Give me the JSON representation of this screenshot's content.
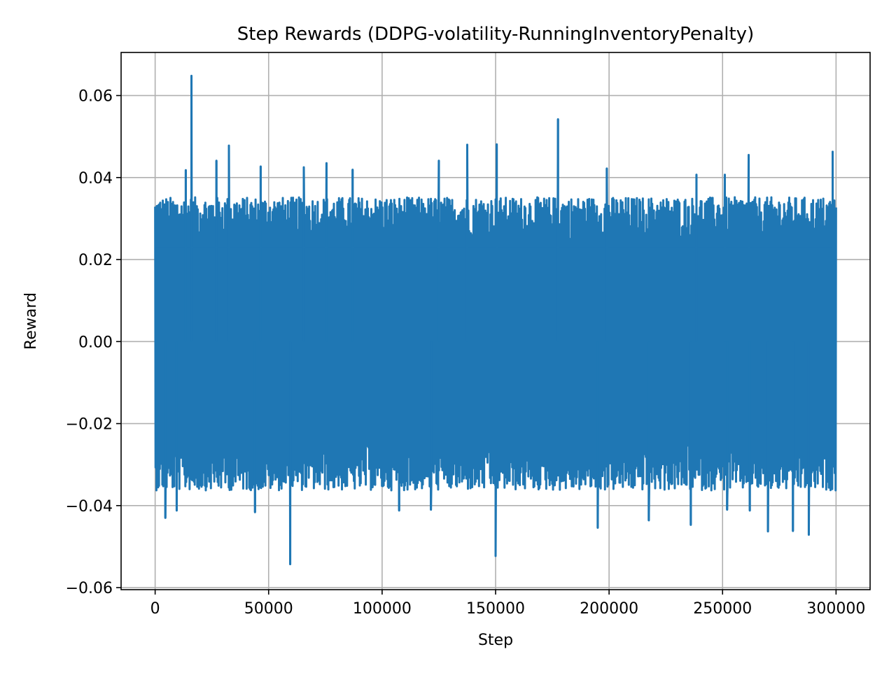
{
  "chart_data": {
    "type": "line",
    "title": "Step Rewards (DDPG-volatility-RunningInventoryPenalty)",
    "xlabel": "Step",
    "ylabel": "Reward",
    "xlim": [
      -15000,
      315000
    ],
    "ylim": [
      -0.0605,
      0.0705
    ],
    "x_ticks": [
      0,
      50000,
      100000,
      150000,
      200000,
      250000,
      300000
    ],
    "x_tick_labels": [
      "0",
      "50000",
      "100000",
      "150000",
      "200000",
      "250000",
      "300000"
    ],
    "y_ticks": [
      -0.06,
      -0.04,
      -0.02,
      0.0,
      0.02,
      0.04,
      0.06
    ],
    "y_tick_labels": [
      "−0.06",
      "−0.04",
      "−0.02",
      "0.00",
      "0.02",
      "0.04",
      "0.06"
    ],
    "grid": true,
    "series": [
      {
        "color": "#1f77b4",
        "x_range": [
          0,
          300000
        ],
        "typical_upper": 0.032,
        "typical_lower": -0.033,
        "peaks": [
          {
            "x": 16000,
            "y": 0.0648
          },
          {
            "x": 177500,
            "y": 0.0542
          },
          {
            "x": 32500,
            "y": 0.0478
          },
          {
            "x": 137500,
            "y": 0.048
          },
          {
            "x": 150500,
            "y": 0.0481
          },
          {
            "x": 298500,
            "y": 0.0463
          },
          {
            "x": 261500,
            "y": 0.0455
          },
          {
            "x": 27000,
            "y": 0.0441
          },
          {
            "x": 125000,
            "y": 0.0441
          },
          {
            "x": 46500,
            "y": 0.0427
          },
          {
            "x": 75500,
            "y": 0.0435
          },
          {
            "x": 13500,
            "y": 0.0418
          },
          {
            "x": 199000,
            "y": 0.0422
          },
          {
            "x": 87000,
            "y": 0.0419
          },
          {
            "x": 65500,
            "y": 0.0425
          },
          {
            "x": 238500,
            "y": 0.0407
          },
          {
            "x": 251000,
            "y": 0.0407
          }
        ],
        "troughs": [
          {
            "x": 59500,
            "y": -0.0543
          },
          {
            "x": 150000,
            "y": -0.0523
          },
          {
            "x": 288000,
            "y": -0.0471
          },
          {
            "x": 270000,
            "y": -0.0463
          },
          {
            "x": 281000,
            "y": -0.0462
          },
          {
            "x": 195000,
            "y": -0.0454
          },
          {
            "x": 236000,
            "y": -0.0447
          },
          {
            "x": 217500,
            "y": -0.0436
          },
          {
            "x": 4500,
            "y": -0.043
          },
          {
            "x": 44000,
            "y": -0.0416
          },
          {
            "x": 9500,
            "y": -0.0412
          },
          {
            "x": 107500,
            "y": -0.0412
          },
          {
            "x": 262000,
            "y": -0.0412
          },
          {
            "x": 121500,
            "y": -0.041
          },
          {
            "x": 252000,
            "y": -0.041
          }
        ]
      }
    ]
  }
}
